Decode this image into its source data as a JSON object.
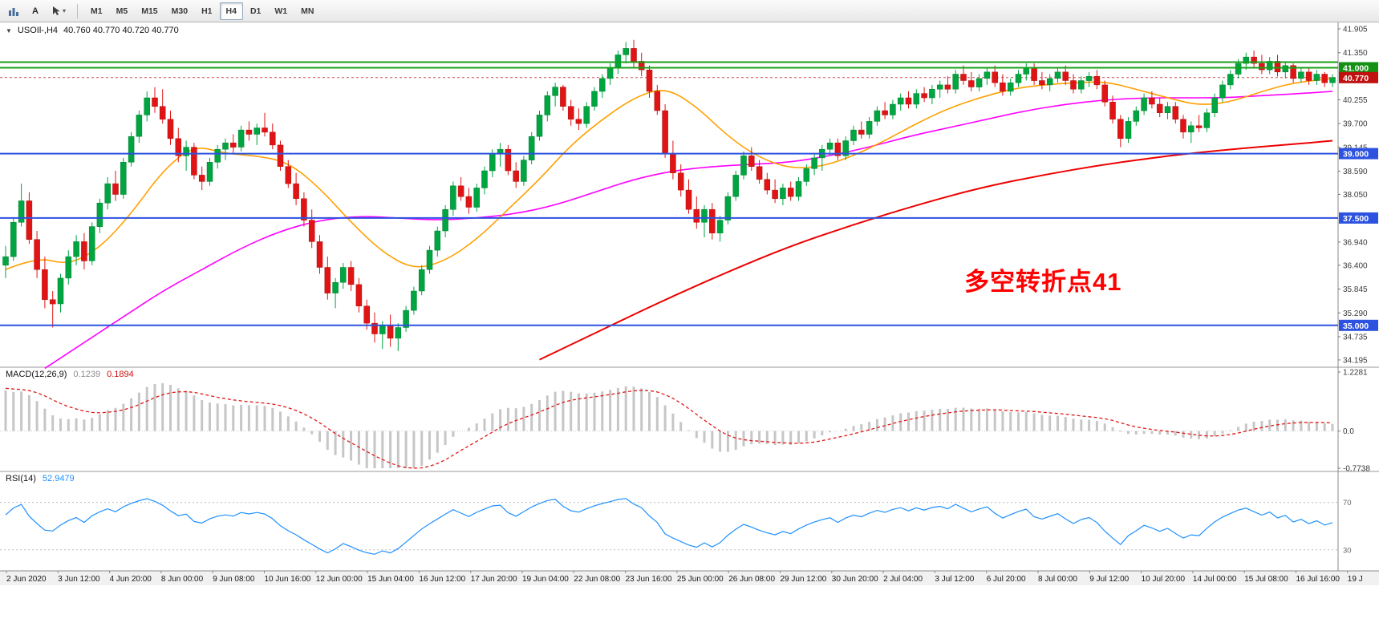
{
  "toolbar": {
    "text_tool_label": "A",
    "timeframes": [
      "M1",
      "M5",
      "M15",
      "M30",
      "H1",
      "H4",
      "D1",
      "W1",
      "MN"
    ],
    "active_timeframe": "H4"
  },
  "chart": {
    "symbol": "USOIl-,H4",
    "ohlc_text": "40.760 40.770 40.720 40.770",
    "annotation": {
      "text": "多空转折点41",
      "color": "#ff0000"
    },
    "current_price": {
      "value": 40.77,
      "label": "40.770",
      "badge_color": "#c01010"
    },
    "price_axis": {
      "min": 34.1,
      "max": 41.98,
      "ticks": [
        41.905,
        41.35,
        40.255,
        39.7,
        39.145,
        38.59,
        38.05,
        36.94,
        36.4,
        35.845,
        35.29,
        34.735,
        34.195
      ]
    },
    "levels": [
      {
        "price": 41.13,
        "color": "#18a018",
        "width": 2
      },
      {
        "price": 41.0,
        "color": "#18a018",
        "width": 2,
        "badge": "41.000",
        "badge_color": "#149114"
      },
      {
        "price": 39.0,
        "color": "#2d52e0",
        "width": 2,
        "badge": "39.000",
        "badge_color": "#2d52e0"
      },
      {
        "price": 37.5,
        "color": "#2d52e0",
        "width": 2,
        "badge": "37.500",
        "badge_color": "#2d52e0"
      },
      {
        "price": 35.0,
        "color": "#2d52e0",
        "width": 2,
        "badge": "35.000",
        "badge_color": "#2d52e0"
      }
    ],
    "time_labels": [
      "2 Jun 2020",
      "3 Jun 12:00",
      "4 Jun 20:00",
      "8 Jun 00:00",
      "9 Jun 08:00",
      "10 Jun 16:00",
      "12 Jun 00:00",
      "15 Jun 04:00",
      "16 Jun 12:00",
      "17 Jun 20:00",
      "19 Jun 04:00",
      "22 Jun 08:00",
      "23 Jun 16:00",
      "25 Jun 00:00",
      "26 Jun 08:00",
      "29 Jun 12:00",
      "30 Jun 20:00",
      "2 Jul 04:00",
      "3 Jul 12:00",
      "6 Jul 20:00",
      "8 Jul 00:00",
      "9 Jul 12:00",
      "10 Jul 20:00",
      "14 Jul 00:00",
      "15 Jul 08:00",
      "16 Jul 16:00",
      "19 J"
    ]
  },
  "indicators": {
    "macd": {
      "title": "MACD(12,26,9)",
      "value_main": "0.1239",
      "value_signal": "0.1894",
      "params": {
        "fast": 12,
        "slow": 26,
        "signal": 9
      },
      "seeds": {
        "fast_offset": 0.45,
        "slow_offset": -0.5,
        "signal": 0.9
      },
      "axis": {
        "max": 1.2281,
        "mid": 0.0,
        "min": -0.7738
      },
      "axis_labels": [
        "1.2281",
        "0.0",
        "-0.7738"
      ]
    },
    "rsi": {
      "title": "RSI(14)",
      "value": "52.9479",
      "params": {
        "period": 14
      },
      "seeds": {
        "avg_gain": 0.22,
        "avg_loss": 0.15
      },
      "levels": [
        70,
        30
      ]
    }
  },
  "chart_data": {
    "type": "candlestick",
    "symbol": "USOIL",
    "timeframe": "H4",
    "ylim": [
      34.1,
      41.98
    ],
    "up_color": "#00A441",
    "down_color": "#E01414",
    "candles": [
      [
        36.4,
        36.85,
        36.1,
        36.6
      ],
      [
        36.6,
        37.5,
        36.5,
        37.4
      ],
      [
        37.4,
        38.3,
        37.3,
        37.9
      ],
      [
        37.9,
        38.1,
        36.9,
        37.0
      ],
      [
        37.0,
        37.2,
        36.1,
        36.3
      ],
      [
        36.3,
        36.6,
        35.4,
        35.6
      ],
      [
        35.6,
        35.8,
        34.95,
        35.5
      ],
      [
        35.5,
        36.2,
        35.3,
        36.1
      ],
      [
        36.1,
        36.75,
        35.95,
        36.6
      ],
      [
        36.6,
        37.1,
        36.4,
        36.95
      ],
      [
        36.95,
        37.15,
        36.3,
        36.5
      ],
      [
        36.5,
        37.4,
        36.4,
        37.3
      ],
      [
        37.3,
        37.95,
        37.15,
        37.85
      ],
      [
        37.85,
        38.45,
        37.7,
        38.3
      ],
      [
        38.3,
        38.6,
        37.9,
        38.05
      ],
      [
        38.05,
        38.9,
        37.95,
        38.8
      ],
      [
        38.8,
        39.5,
        38.7,
        39.4
      ],
      [
        39.4,
        40.0,
        39.25,
        39.9
      ],
      [
        39.9,
        40.45,
        39.75,
        40.3
      ],
      [
        40.3,
        40.55,
        39.95,
        40.1
      ],
      [
        40.1,
        40.5,
        39.7,
        39.8
      ],
      [
        39.8,
        40.0,
        39.2,
        39.35
      ],
      [
        39.35,
        39.6,
        38.8,
        38.95
      ],
      [
        38.95,
        39.3,
        38.6,
        39.15
      ],
      [
        39.15,
        39.25,
        38.4,
        38.5
      ],
      [
        38.5,
        38.7,
        38.15,
        38.35
      ],
      [
        38.35,
        38.9,
        38.25,
        38.8
      ],
      [
        38.8,
        39.2,
        38.65,
        39.1
      ],
      [
        39.1,
        39.35,
        38.85,
        39.25
      ],
      [
        39.25,
        39.45,
        39.0,
        39.15
      ],
      [
        39.15,
        39.65,
        39.05,
        39.55
      ],
      [
        39.55,
        39.75,
        39.3,
        39.45
      ],
      [
        39.45,
        39.7,
        39.2,
        39.6
      ],
      [
        39.6,
        39.95,
        39.4,
        39.5
      ],
      [
        39.5,
        39.7,
        39.1,
        39.2
      ],
      [
        39.2,
        39.3,
        38.6,
        38.7
      ],
      [
        38.7,
        38.85,
        38.2,
        38.3
      ],
      [
        38.3,
        38.55,
        37.8,
        37.95
      ],
      [
        37.95,
        38.1,
        37.3,
        37.45
      ],
      [
        37.45,
        37.7,
        36.8,
        36.95
      ],
      [
        36.95,
        37.1,
        36.2,
        36.35
      ],
      [
        36.35,
        36.6,
        35.6,
        35.75
      ],
      [
        35.75,
        36.1,
        35.4,
        36.0
      ],
      [
        36.0,
        36.45,
        35.85,
        36.35
      ],
      [
        36.35,
        36.5,
        35.8,
        35.95
      ],
      [
        35.95,
        36.1,
        35.3,
        35.45
      ],
      [
        35.45,
        35.6,
        34.9,
        35.05
      ],
      [
        35.05,
        35.3,
        34.6,
        34.8
      ],
      [
        34.8,
        35.1,
        34.45,
        35.0
      ],
      [
        35.0,
        35.25,
        34.5,
        34.7
      ],
      [
        34.7,
        35.05,
        34.4,
        34.95
      ],
      [
        34.95,
        35.45,
        34.85,
        35.35
      ],
      [
        35.35,
        35.9,
        35.25,
        35.8
      ],
      [
        35.8,
        36.4,
        35.7,
        36.3
      ],
      [
        36.3,
        36.85,
        36.2,
        36.75
      ],
      [
        36.75,
        37.3,
        36.6,
        37.2
      ],
      [
        37.2,
        37.8,
        37.05,
        37.7
      ],
      [
        37.7,
        38.35,
        37.55,
        38.25
      ],
      [
        38.25,
        38.45,
        37.9,
        38.0
      ],
      [
        38.0,
        38.2,
        37.6,
        37.75
      ],
      [
        37.75,
        38.3,
        37.65,
        38.2
      ],
      [
        38.2,
        38.7,
        38.05,
        38.6
      ],
      [
        38.6,
        39.1,
        38.45,
        39.0
      ],
      [
        39.0,
        39.25,
        38.7,
        39.1
      ],
      [
        39.1,
        39.2,
        38.5,
        38.6
      ],
      [
        38.6,
        38.8,
        38.2,
        38.35
      ],
      [
        38.35,
        38.95,
        38.25,
        38.85
      ],
      [
        38.85,
        39.5,
        38.75,
        39.4
      ],
      [
        39.4,
        40.0,
        39.3,
        39.9
      ],
      [
        39.9,
        40.45,
        39.75,
        40.35
      ],
      [
        40.35,
        40.65,
        40.1,
        40.55
      ],
      [
        40.55,
        40.6,
        40.0,
        40.1
      ],
      [
        40.1,
        40.25,
        39.65,
        39.8
      ],
      [
        39.8,
        40.05,
        39.55,
        39.7
      ],
      [
        39.7,
        40.2,
        39.6,
        40.1
      ],
      [
        40.1,
        40.55,
        40.0,
        40.45
      ],
      [
        40.45,
        40.85,
        40.3,
        40.75
      ],
      [
        40.75,
        41.1,
        40.6,
        41.0
      ],
      [
        41.0,
        41.4,
        40.85,
        41.3
      ],
      [
        41.3,
        41.6,
        41.1,
        41.45
      ],
      [
        41.45,
        41.65,
        41.0,
        41.15
      ],
      [
        41.15,
        41.35,
        40.8,
        40.95
      ],
      [
        40.95,
        41.05,
        40.3,
        40.45
      ],
      [
        40.45,
        40.6,
        39.9,
        40.0
      ],
      [
        40.0,
        40.15,
        38.9,
        39.0
      ],
      [
        39.0,
        39.3,
        38.4,
        38.55
      ],
      [
        38.55,
        38.75,
        38.0,
        38.15
      ],
      [
        38.15,
        38.4,
        37.6,
        37.7
      ],
      [
        37.7,
        38.0,
        37.25,
        37.4
      ],
      [
        37.4,
        37.8,
        37.05,
        37.7
      ],
      [
        37.7,
        37.85,
        37.0,
        37.15
      ],
      [
        37.15,
        37.55,
        36.95,
        37.45
      ],
      [
        37.45,
        38.1,
        37.35,
        38.0
      ],
      [
        38.0,
        38.6,
        37.9,
        38.5
      ],
      [
        38.5,
        39.05,
        38.4,
        38.95
      ],
      [
        38.95,
        39.15,
        38.6,
        38.7
      ],
      [
        38.7,
        38.85,
        38.3,
        38.4
      ],
      [
        38.4,
        38.55,
        38.05,
        38.15
      ],
      [
        38.15,
        38.4,
        37.85,
        37.95
      ],
      [
        37.95,
        38.3,
        37.8,
        38.2
      ],
      [
        38.2,
        38.35,
        37.9,
        38.0
      ],
      [
        38.0,
        38.45,
        37.9,
        38.35
      ],
      [
        38.35,
        38.75,
        38.25,
        38.65
      ],
      [
        38.65,
        39.0,
        38.5,
        38.9
      ],
      [
        38.9,
        39.2,
        38.6,
        39.1
      ],
      [
        39.1,
        39.35,
        38.95,
        39.25
      ],
      [
        39.25,
        39.35,
        38.85,
        38.95
      ],
      [
        38.95,
        39.4,
        38.85,
        39.3
      ],
      [
        39.3,
        39.65,
        39.2,
        39.55
      ],
      [
        39.55,
        39.75,
        39.35,
        39.45
      ],
      [
        39.45,
        39.85,
        39.35,
        39.75
      ],
      [
        39.75,
        40.1,
        39.65,
        40.0
      ],
      [
        40.0,
        40.2,
        39.8,
        39.9
      ],
      [
        39.9,
        40.25,
        39.8,
        40.15
      ],
      [
        40.15,
        40.4,
        40.0,
        40.3
      ],
      [
        40.3,
        40.45,
        40.05,
        40.15
      ],
      [
        40.15,
        40.5,
        40.05,
        40.4
      ],
      [
        40.4,
        40.55,
        40.2,
        40.3
      ],
      [
        40.3,
        40.6,
        40.15,
        40.5
      ],
      [
        40.5,
        40.7,
        40.3,
        40.6
      ],
      [
        40.6,
        40.8,
        40.4,
        40.5
      ],
      [
        40.5,
        40.95,
        40.4,
        40.85
      ],
      [
        40.85,
        41.05,
        40.6,
        40.7
      ],
      [
        40.7,
        40.9,
        40.45,
        40.55
      ],
      [
        40.55,
        40.85,
        40.45,
        40.75
      ],
      [
        40.75,
        41.0,
        40.6,
        40.9
      ],
      [
        40.9,
        41.05,
        40.55,
        40.65
      ],
      [
        40.65,
        40.85,
        40.35,
        40.45
      ],
      [
        40.45,
        40.75,
        40.35,
        40.65
      ],
      [
        40.65,
        40.95,
        40.55,
        40.85
      ],
      [
        40.85,
        41.1,
        40.7,
        41.0
      ],
      [
        41.0,
        41.1,
        40.6,
        40.7
      ],
      [
        40.7,
        40.9,
        40.5,
        40.6
      ],
      [
        40.6,
        40.85,
        40.45,
        40.75
      ],
      [
        40.75,
        41.0,
        40.65,
        40.9
      ],
      [
        40.9,
        41.05,
        40.6,
        40.7
      ],
      [
        40.7,
        40.85,
        40.4,
        40.5
      ],
      [
        40.5,
        40.8,
        40.4,
        40.7
      ],
      [
        40.7,
        40.9,
        40.55,
        40.8
      ],
      [
        40.8,
        40.95,
        40.5,
        40.6
      ],
      [
        40.6,
        40.7,
        40.1,
        40.2
      ],
      [
        40.2,
        40.35,
        39.7,
        39.8
      ],
      [
        39.8,
        39.9,
        39.15,
        39.35
      ],
      [
        39.35,
        39.85,
        39.25,
        39.75
      ],
      [
        39.75,
        40.1,
        39.65,
        40.0
      ],
      [
        40.0,
        40.4,
        39.9,
        40.3
      ],
      [
        40.3,
        40.45,
        40.05,
        40.15
      ],
      [
        40.15,
        40.3,
        39.85,
        39.95
      ],
      [
        39.95,
        40.2,
        39.8,
        40.1
      ],
      [
        40.1,
        40.2,
        39.7,
        39.8
      ],
      [
        39.8,
        39.9,
        39.35,
        39.5
      ],
      [
        39.5,
        39.75,
        39.25,
        39.65
      ],
      [
        39.65,
        39.9,
        39.5,
        39.6
      ],
      [
        39.6,
        40.05,
        39.5,
        39.95
      ],
      [
        39.95,
        40.4,
        39.85,
        40.3
      ],
      [
        40.3,
        40.7,
        40.2,
        40.6
      ],
      [
        40.6,
        40.95,
        40.5,
        40.85
      ],
      [
        40.85,
        41.2,
        40.75,
        41.1
      ],
      [
        41.1,
        41.35,
        40.95,
        41.25
      ],
      [
        41.25,
        41.4,
        41.0,
        41.1
      ],
      [
        41.1,
        41.3,
        40.85,
        40.95
      ],
      [
        40.95,
        41.25,
        40.85,
        41.15
      ],
      [
        41.15,
        41.3,
        40.8,
        40.9
      ],
      [
        40.9,
        41.15,
        40.75,
        41.05
      ],
      [
        41.05,
        41.1,
        40.65,
        40.75
      ],
      [
        40.75,
        41.0,
        40.65,
        40.9
      ],
      [
        40.9,
        41.0,
        40.6,
        40.7
      ],
      [
        40.7,
        40.95,
        40.6,
        40.85
      ],
      [
        40.85,
        40.9,
        40.55,
        40.65
      ],
      [
        40.65,
        40.85,
        40.55,
        40.77
      ]
    ],
    "ma_orange": [
      [
        0,
        36.3
      ],
      [
        4,
        36.6
      ],
      [
        8,
        36.4
      ],
      [
        12,
        36.8
      ],
      [
        16,
        37.6
      ],
      [
        20,
        38.6
      ],
      [
        24,
        39.2
      ],
      [
        28,
        39.0
      ],
      [
        32,
        38.95
      ],
      [
        36,
        38.8
      ],
      [
        40,
        38.2
      ],
      [
        44,
        37.4
      ],
      [
        48,
        36.7
      ],
      [
        52,
        36.3
      ],
      [
        56,
        36.5
      ],
      [
        60,
        37.0
      ],
      [
        64,
        37.7
      ],
      [
        68,
        38.4
      ],
      [
        72,
        39.2
      ],
      [
        76,
        39.8
      ],
      [
        80,
        40.3
      ],
      [
        84,
        40.55
      ],
      [
        88,
        40.1
      ],
      [
        92,
        39.4
      ],
      [
        96,
        38.9
      ],
      [
        100,
        38.65
      ],
      [
        104,
        38.7
      ],
      [
        108,
        38.95
      ],
      [
        112,
        39.3
      ],
      [
        116,
        39.7
      ],
      [
        120,
        40.05
      ],
      [
        124,
        40.3
      ],
      [
        128,
        40.5
      ],
      [
        132,
        40.6
      ],
      [
        136,
        40.65
      ],
      [
        140,
        40.68
      ],
      [
        144,
        40.5
      ],
      [
        148,
        40.3
      ],
      [
        152,
        40.12
      ],
      [
        156,
        40.2
      ],
      [
        160,
        40.45
      ],
      [
        164,
        40.65
      ],
      [
        169,
        40.75
      ]
    ],
    "ma_magenta": [
      [
        5,
        34.0
      ],
      [
        10,
        34.6
      ],
      [
        15,
        35.2
      ],
      [
        20,
        35.8
      ],
      [
        25,
        36.3
      ],
      [
        30,
        36.8
      ],
      [
        35,
        37.2
      ],
      [
        40,
        37.45
      ],
      [
        45,
        37.55
      ],
      [
        50,
        37.5
      ],
      [
        55,
        37.45
      ],
      [
        60,
        37.5
      ],
      [
        65,
        37.6
      ],
      [
        70,
        37.8
      ],
      [
        75,
        38.1
      ],
      [
        80,
        38.4
      ],
      [
        85,
        38.6
      ],
      [
        90,
        38.7
      ],
      [
        95,
        38.75
      ],
      [
        100,
        38.8
      ],
      [
        105,
        38.95
      ],
      [
        110,
        39.15
      ],
      [
        115,
        39.4
      ],
      [
        120,
        39.6
      ],
      [
        125,
        39.8
      ],
      [
        130,
        40.0
      ],
      [
        135,
        40.15
      ],
      [
        140,
        40.25
      ],
      [
        145,
        40.3
      ],
      [
        150,
        40.3
      ],
      [
        155,
        40.3
      ],
      [
        160,
        40.35
      ],
      [
        165,
        40.4
      ],
      [
        169,
        40.45
      ]
    ],
    "ma_red": [
      [
        68,
        34.2
      ],
      [
        76,
        34.9
      ],
      [
        84,
        35.6
      ],
      [
        92,
        36.25
      ],
      [
        100,
        36.85
      ],
      [
        108,
        37.35
      ],
      [
        116,
        37.8
      ],
      [
        124,
        38.2
      ],
      [
        132,
        38.5
      ],
      [
        140,
        38.75
      ],
      [
        148,
        38.95
      ],
      [
        156,
        39.1
      ],
      [
        164,
        39.22
      ],
      [
        169,
        39.3
      ]
    ]
  }
}
